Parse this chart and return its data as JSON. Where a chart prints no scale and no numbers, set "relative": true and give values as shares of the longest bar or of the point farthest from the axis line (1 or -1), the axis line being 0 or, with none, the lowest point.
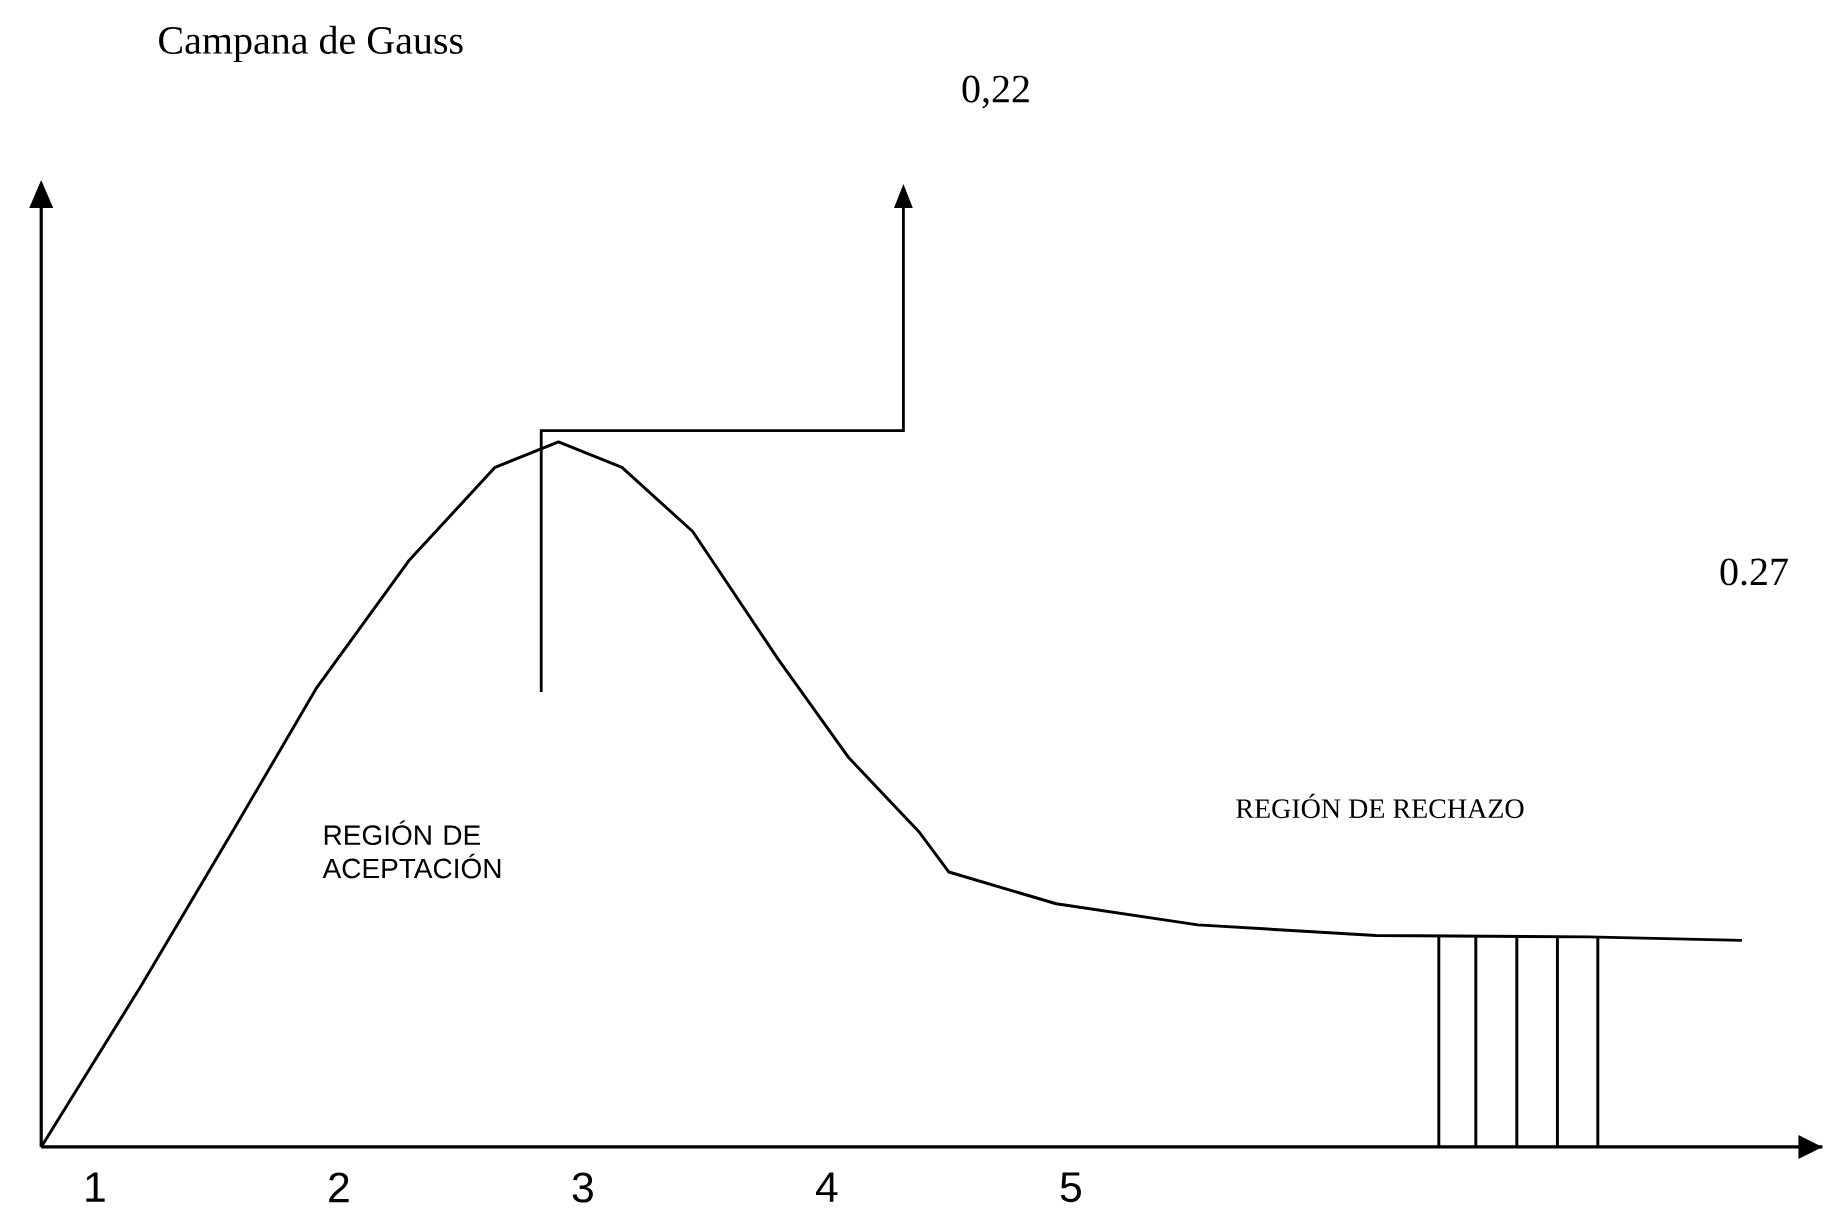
{
  "chart_data": {
    "type": "line",
    "title": "Campana de Gauss",
    "relative": true,
    "xlim": [
      0.78,
      8.08
    ],
    "xticks": [
      1,
      2,
      3,
      4,
      5
    ],
    "series": [
      {
        "color": "#000000",
        "x": [
          0.78,
          1.19,
          1.57,
          1.91,
          2.29,
          2.64,
          2.9,
          3.16,
          3.45,
          3.8,
          4.09,
          4.38,
          4.5,
          4.94,
          5.52,
          6.25,
          7.12,
          7.75
        ],
        "values": [
          0,
          0.229,
          0.451,
          0.652,
          0.833,
          0.964,
          1.0,
          0.964,
          0.873,
          0.692,
          0.552,
          0.446,
          0.39,
          0.345,
          0.315,
          0.3,
          0.298,
          0.293
        ]
      }
    ],
    "annotations": [
      "0,22",
      "0.27",
      "REGIÓN DE ACEPTACIÓN",
      "REGIÓN DE RECHAZO"
    ]
  }
}
